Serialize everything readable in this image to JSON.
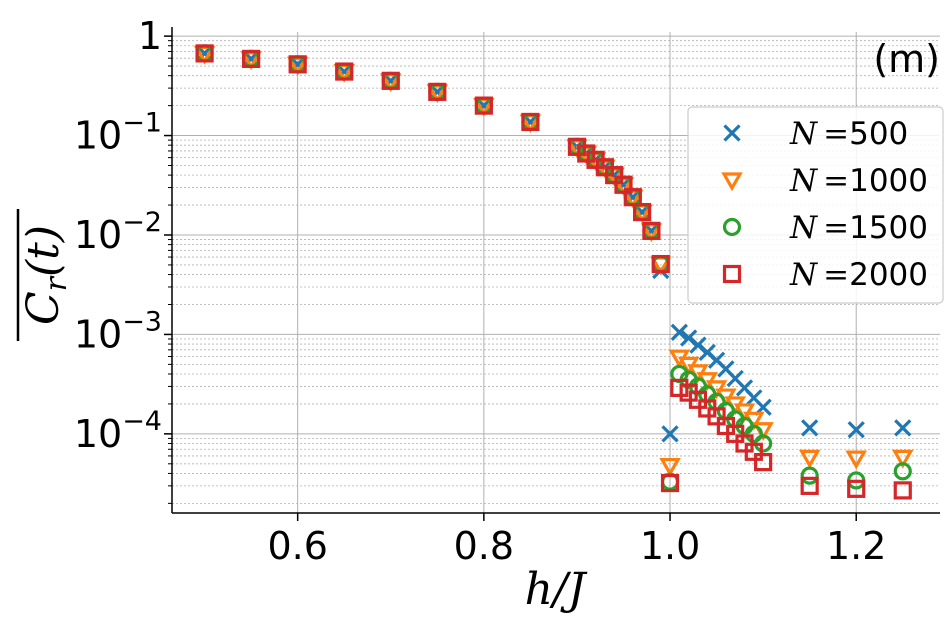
{
  "chart_data": {
    "type": "scatter",
    "panel_label": "(m)",
    "xlabel": "h/J",
    "ylabel": "C_r(t)",
    "ylabel_parts": {
      "main": "C",
      "sub": "r",
      "arg": "(t)"
    },
    "xscale": "linear",
    "yscale": "log",
    "xlim": [
      0.465,
      1.29
    ],
    "ylim": [
      1.6e-05,
      1.1
    ],
    "grid": true,
    "legend_position": "right",
    "x_ticks": [
      {
        "value": 0.6,
        "label": "0.6"
      },
      {
        "value": 0.8,
        "label": "0.8"
      },
      {
        "value": 1.0,
        "label": "1.0"
      },
      {
        "value": 1.2,
        "label": "1.2"
      }
    ],
    "y_ticks": [
      {
        "value": 1,
        "base": "1",
        "exp": ""
      },
      {
        "value": 0.1,
        "base": "10",
        "exp": "−1"
      },
      {
        "value": 0.01,
        "base": "10",
        "exp": "−2"
      },
      {
        "value": 0.001,
        "base": "10",
        "exp": "−3"
      },
      {
        "value": 0.0001,
        "base": "10",
        "exp": "−4"
      }
    ],
    "series": [
      {
        "name": "N = 500",
        "n_label": "N",
        "eq_label": "=",
        "value_label": "500",
        "marker": "x",
        "color": "#1f77b4",
        "x": [
          0.5,
          0.55,
          0.6,
          0.65,
          0.7,
          0.75,
          0.8,
          0.85,
          0.9,
          0.91,
          0.92,
          0.93,
          0.94,
          0.95,
          0.96,
          0.97,
          0.98,
          0.99,
          1.0,
          1.01,
          1.02,
          1.03,
          1.04,
          1.05,
          1.06,
          1.07,
          1.08,
          1.09,
          1.1,
          1.15,
          1.2,
          1.25
        ],
        "y": [
          0.67,
          0.59,
          0.52,
          0.44,
          0.355,
          0.275,
          0.2,
          0.137,
          0.077,
          0.066,
          0.057,
          0.048,
          0.04,
          0.032,
          0.024,
          0.017,
          0.011,
          0.0044,
          0.0001,
          0.00105,
          0.00092,
          0.00078,
          0.00066,
          0.00055,
          0.00045,
          0.00036,
          0.00029,
          0.00023,
          0.000185,
          0.000115,
          0.00011,
          0.000115
        ]
      },
      {
        "name": "N = 1000",
        "n_label": "N",
        "eq_label": "=",
        "value_label": "1000",
        "marker": "triangle-down",
        "color": "#ff7f0e",
        "x": [
          0.5,
          0.55,
          0.6,
          0.65,
          0.7,
          0.75,
          0.8,
          0.85,
          0.9,
          0.91,
          0.92,
          0.93,
          0.94,
          0.95,
          0.96,
          0.97,
          0.98,
          0.99,
          1.0,
          1.01,
          1.02,
          1.03,
          1.04,
          1.05,
          1.06,
          1.07,
          1.08,
          1.09,
          1.1,
          1.15,
          1.2,
          1.25
        ],
        "y": [
          0.67,
          0.59,
          0.52,
          0.44,
          0.355,
          0.275,
          0.2,
          0.137,
          0.077,
          0.066,
          0.057,
          0.048,
          0.04,
          0.032,
          0.024,
          0.017,
          0.011,
          0.0051,
          4.8e-05,
          0.00059,
          0.0005,
          0.00042,
          0.00035,
          0.00029,
          0.00024,
          0.0002,
          0.00017,
          0.00014,
          0.00011,
          5.8e-05,
          5.7e-05,
          5.8e-05
        ]
      },
      {
        "name": "N = 1500",
        "n_label": "N",
        "eq_label": "=",
        "value_label": "1500",
        "marker": "circle",
        "color": "#2ca02c",
        "x": [
          0.5,
          0.55,
          0.6,
          0.65,
          0.7,
          0.75,
          0.8,
          0.85,
          0.9,
          0.91,
          0.92,
          0.93,
          0.94,
          0.95,
          0.96,
          0.97,
          0.98,
          0.99,
          1.0,
          1.01,
          1.02,
          1.03,
          1.04,
          1.05,
          1.06,
          1.07,
          1.08,
          1.09,
          1.1,
          1.15,
          1.2,
          1.25
        ],
        "y": [
          0.67,
          0.59,
          0.52,
          0.44,
          0.355,
          0.275,
          0.2,
          0.137,
          0.077,
          0.066,
          0.057,
          0.048,
          0.04,
          0.032,
          0.024,
          0.017,
          0.011,
          0.0051,
          3.3e-05,
          0.0004,
          0.00035,
          0.0003,
          0.00025,
          0.00021,
          0.00017,
          0.00014,
          0.00012,
          0.0001,
          8e-05,
          3.8e-05,
          3.4e-05,
          4.2e-05
        ]
      },
      {
        "name": "N = 2000",
        "n_label": "N",
        "eq_label": "=",
        "value_label": "2000",
        "marker": "square",
        "color": "#d62728",
        "x": [
          0.5,
          0.55,
          0.6,
          0.65,
          0.7,
          0.75,
          0.8,
          0.85,
          0.9,
          0.91,
          0.92,
          0.93,
          0.94,
          0.95,
          0.96,
          0.97,
          0.98,
          0.99,
          1.0,
          1.01,
          1.02,
          1.03,
          1.04,
          1.05,
          1.06,
          1.07,
          1.08,
          1.09,
          1.1,
          1.15,
          1.2,
          1.25
        ],
        "y": [
          0.67,
          0.59,
          0.52,
          0.44,
          0.355,
          0.275,
          0.2,
          0.137,
          0.077,
          0.066,
          0.057,
          0.048,
          0.04,
          0.032,
          0.024,
          0.017,
          0.011,
          0.0051,
          3.2e-05,
          0.00029,
          0.00026,
          0.00022,
          0.00018,
          0.00015,
          0.00012,
          0.0001,
          8e-05,
          6.6e-05,
          5.2e-05,
          3e-05,
          2.8e-05,
          2.7e-05
        ]
      }
    ]
  }
}
